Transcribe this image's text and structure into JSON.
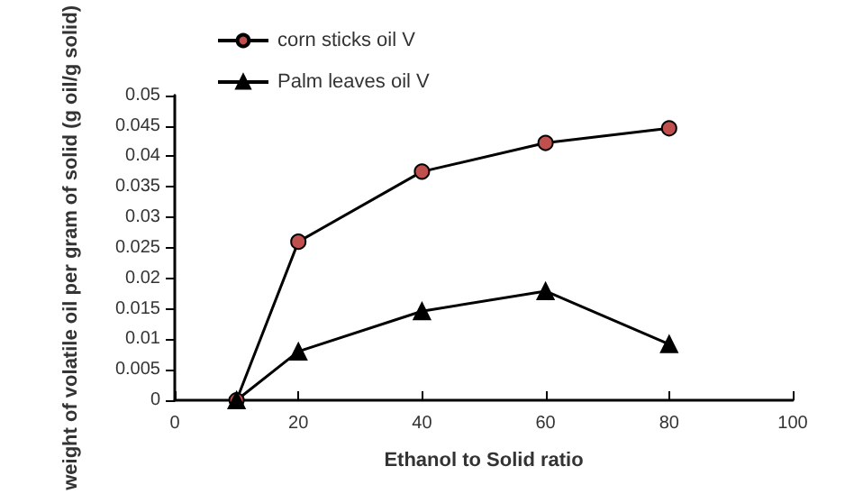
{
  "chart_data": {
    "type": "line",
    "xlabel": "Ethanol to Solid ratio",
    "ylabel": "weight of volatile oil per gram of solid (g oil/g solid)",
    "x": [
      10,
      20,
      40,
      60,
      80
    ],
    "series": [
      {
        "name": "corn sticks oil V",
        "color": "#c0504d",
        "marker": "circle",
        "values": [
          0,
          0.026,
          0.0375,
          0.0422,
          0.0446
        ]
      },
      {
        "name": "Palm leaves oil V",
        "color": "#000000",
        "marker": "triangle",
        "values": [
          0,
          0.008,
          0.0146,
          0.0179,
          0.0092
        ]
      }
    ],
    "xlim": [
      0,
      100
    ],
    "xticks": [
      0,
      20,
      40,
      60,
      80,
      100
    ],
    "ylim": [
      0,
      0.05
    ],
    "yticks": [
      0,
      0.005,
      0.01,
      0.015,
      0.02,
      0.025,
      0.03,
      0.035,
      0.04,
      0.045,
      0.05
    ],
    "grid": false,
    "legend": "top left",
    "line_style": "solid"
  }
}
